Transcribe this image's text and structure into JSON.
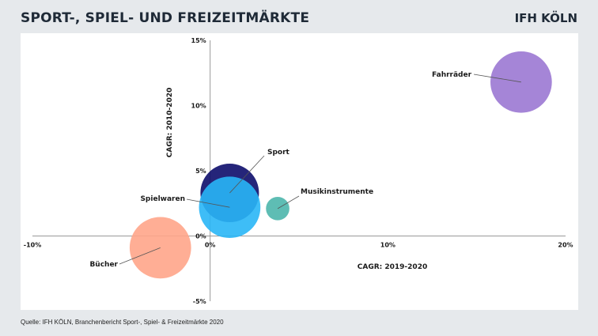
{
  "header": {
    "title": "SPORT-, SPIEL- UND FREIZEITMÄRKTE",
    "logo": "IFH KÖLN"
  },
  "footer": {
    "source": "Quelle: IFH KÖLN, Branchenbericht Sport-, Spiel- & Freizeitmärkte 2020"
  },
  "colors": {
    "background": "#e6e9ec",
    "panel": "#ffffff",
    "axis": "#999999"
  },
  "chart_data": {
    "type": "bubble",
    "title": "",
    "xlabel": "CAGR: 2019-2020",
    "ylabel": "CAGR: 2010-2020",
    "xlim": [
      -10,
      20
    ],
    "ylim": [
      -5,
      15
    ],
    "x_ticks": [
      "-10%",
      "0%",
      "10%",
      "20%"
    ],
    "y_ticks": [
      "15%",
      "10%",
      "5%",
      "0%",
      "-5%"
    ],
    "series": [
      {
        "name": "Fahrräder",
        "x": 17.5,
        "y": 11.8,
        "size": 1.05,
        "color": "#9b78d3"
      },
      {
        "name": "Sport",
        "x": 1.1,
        "y": 3.3,
        "size": 1.0,
        "color": "#0d0d6b"
      },
      {
        "name": "Spielwaren",
        "x": 1.1,
        "y": 2.2,
        "size": 1.05,
        "color": "#29b6f6"
      },
      {
        "name": "Musikinstrumente",
        "x": 3.8,
        "y": 2.1,
        "size": 0.4,
        "color": "#4db6ac"
      },
      {
        "name": "Bücher",
        "x": -2.8,
        "y": -0.9,
        "size": 1.05,
        "color": "#ffa58a"
      }
    ]
  }
}
